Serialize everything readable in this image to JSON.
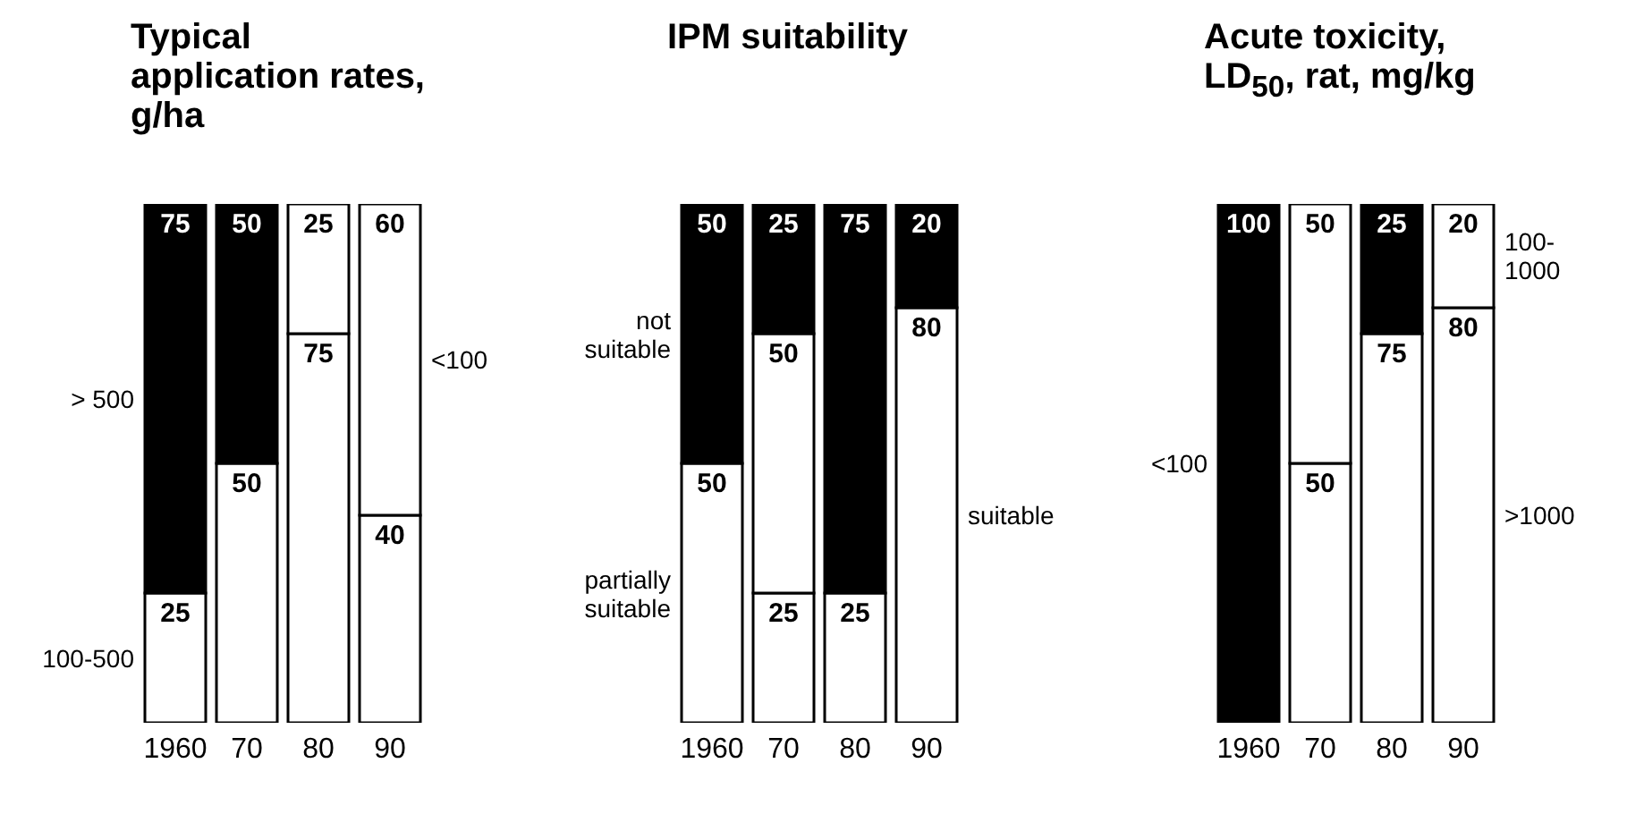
{
  "chart_data": [
    {
      "type": "bar",
      "title": "Typical application rates, g/ha",
      "categories": [
        "1960",
        "70",
        "80",
        "90"
      ],
      "stacked": true,
      "data_labels": true,
      "ylim": [
        0,
        100
      ],
      "tick_labels": "x",
      "grid": false,
      "series": [
        {
          "name": "100-500",
          "color": "#ffffff",
          "values": [
            25,
            50,
            75,
            40
          ]
        },
        {
          "name": "> 500",
          "color": "#000000",
          "values": [
            75,
            50,
            null,
            null
          ]
        },
        {
          "name": "<100",
          "color": "#ffffff",
          "values": [
            null,
            null,
            25,
            60
          ]
        }
      ]
    },
    {
      "type": "bar",
      "title": "IPM suitability",
      "categories": [
        "1960",
        "70",
        "80",
        "90"
      ],
      "stacked": true,
      "data_labels": true,
      "ylim": [
        0,
        100
      ],
      "tick_labels": "x",
      "grid": false,
      "series": [
        {
          "name": "partially suitable",
          "color": "#ffffff",
          "values": [
            50,
            25,
            25,
            null
          ]
        },
        {
          "name": "suitable",
          "color": "#ffffff",
          "values": [
            null,
            50,
            null,
            80
          ]
        },
        {
          "name": "not suitable",
          "color": "#000000",
          "values": [
            50,
            25,
            75,
            20
          ]
        }
      ]
    },
    {
      "type": "bar",
      "title": "Acute toxicity, LD$_{50}$, rat, mg/kg",
      "categories": [
        "1960",
        "70",
        "80",
        "90"
      ],
      "stacked": true,
      "data_labels": true,
      "ylim": [
        0,
        100
      ],
      "tick_labels": "x",
      "grid": false,
      "series": [
        {
          "name": ">1000",
          "color": "#ffffff",
          "values": [
            null,
            50,
            75,
            80
          ]
        },
        {
          "name": "100-1000",
          "color": "#ffffff",
          "values": [
            null,
            50,
            null,
            20
          ]
        },
        {
          "name": "<100",
          "color": "#000000",
          "values": [
            100,
            null,
            25,
            null
          ]
        }
      ]
    }
  ]
}
